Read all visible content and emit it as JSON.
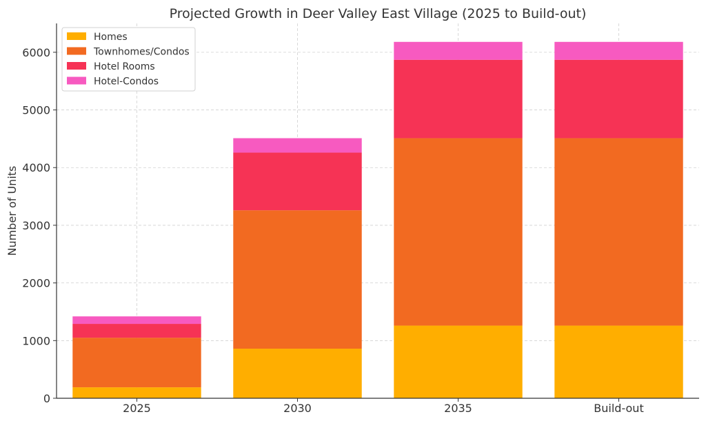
{
  "chart_data": {
    "type": "bar",
    "stacked": true,
    "title": "Projected Growth in Deer Valley East Village (2025 to Build-out)",
    "xlabel": "",
    "ylabel": "Number of Units",
    "categories": [
      "2025",
      "2030",
      "2035",
      "Build-out"
    ],
    "ylim": [
      0,
      6500
    ],
    "yticks": [
      0,
      1000,
      2000,
      3000,
      4000,
      5000,
      6000
    ],
    "grid": true,
    "legend_position": "top-left",
    "series": [
      {
        "name": "Homes",
        "color": "#FFAE00",
        "values": [
          190,
          860,
          1260,
          1260
        ]
      },
      {
        "name": "Townhomes/Condos",
        "color": "#F26A21",
        "values": [
          860,
          2400,
          3250,
          3250
        ]
      },
      {
        "name": "Hotel Rooms",
        "color": "#F63355",
        "values": [
          240,
          1000,
          1360,
          1360
        ]
      },
      {
        "name": "Hotel-Condos",
        "color": "#F75AC0",
        "values": [
          130,
          250,
          310,
          310
        ]
      }
    ]
  }
}
